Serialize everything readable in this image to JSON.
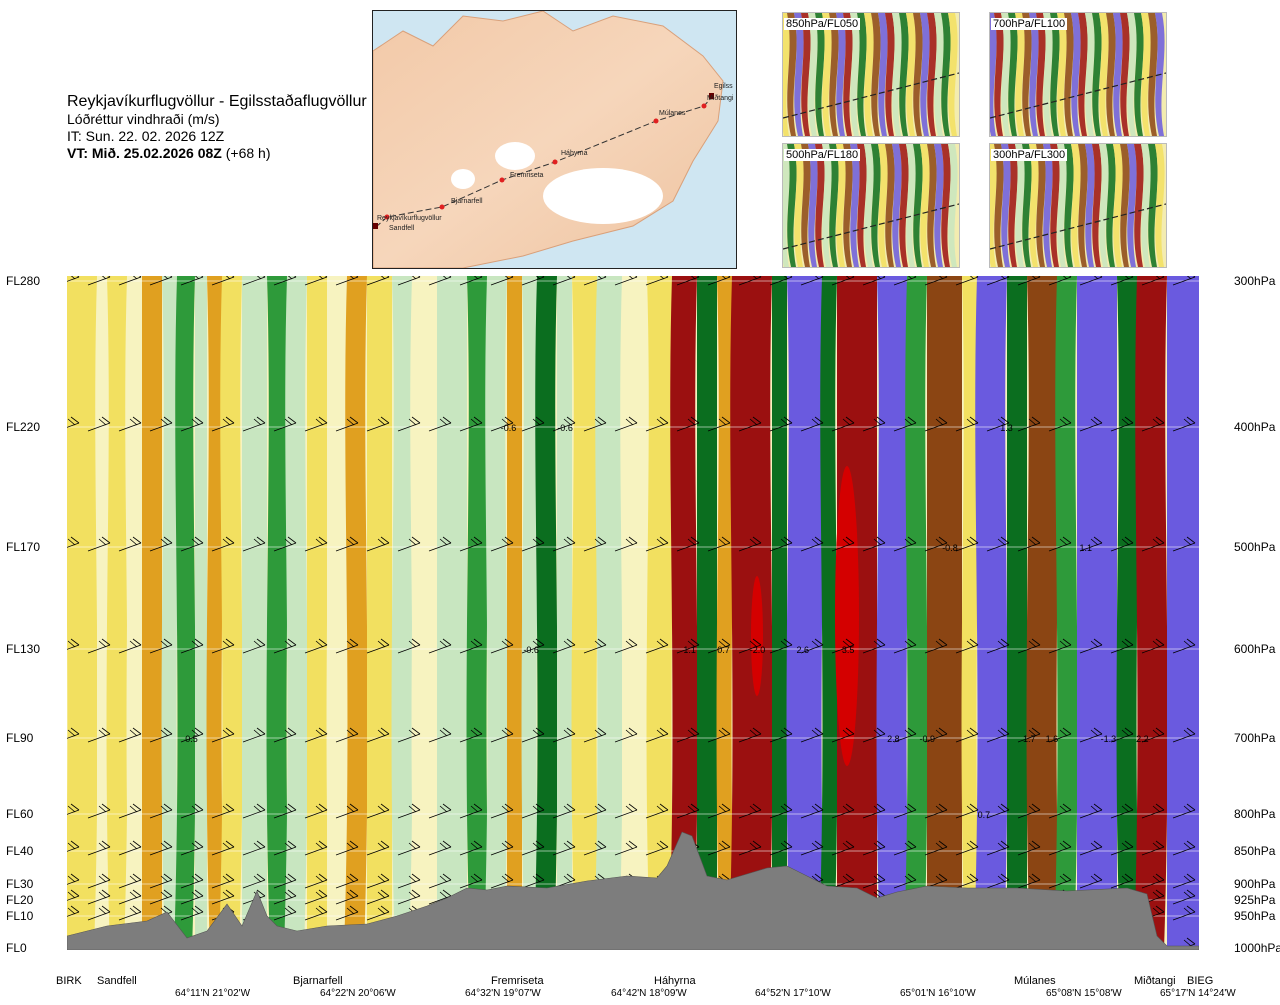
{
  "header": {
    "title": "Reykjavíkurflugvöllur - Egilsstaðaflugvöllur",
    "subtitle": "Lóðréttur vindhraði (m/s)",
    "issue_time": "IT: Sun. 22. 02. 2026 12Z",
    "valid_prefix": "VT: Mið. 25.02.2026 08Z",
    "valid_suffix": "(+68 h)"
  },
  "map": {
    "route_points": [
      "Reykjavíkurflugvöllur",
      "Sandfell",
      "Bjarnarfell",
      "Fremriseta",
      "Háhyrna",
      "Múlanes",
      "Miðtangi",
      "Egilss"
    ]
  },
  "mini_maps": [
    {
      "label": "850hPa/FL050"
    },
    {
      "label": "700hPa/FL100"
    },
    {
      "label": "500hPa/FL180"
    },
    {
      "label": "300hPa/FL300"
    }
  ],
  "chart_data": {
    "type": "heatmap",
    "title": "Lóðréttur vindhraði (m/s)",
    "levels": [
      {
        "fl": "FL280",
        "hpa": "300hPa"
      },
      {
        "fl": "FL220",
        "hpa": "400hPa"
      },
      {
        "fl": "FL170",
        "hpa": "500hPa"
      },
      {
        "fl": "FL130",
        "hpa": "600hPa"
      },
      {
        "fl": "FL90",
        "hpa": "700hPa"
      },
      {
        "fl": "FL60",
        "hpa": "800hPa"
      },
      {
        "fl": "FL40",
        "hpa": "850hPa"
      },
      {
        "fl": "FL30",
        "hpa": "900hPa"
      },
      {
        "fl": "FL20",
        "hpa": "925hPa"
      },
      {
        "fl": "FL10",
        "hpa": "950hPa"
      },
      {
        "fl": "FL0",
        "hpa": "1000hPa"
      }
    ],
    "locations": [
      "BIRK",
      "Sandfell",
      "Bjarnarfell",
      "Fremriseta",
      "Háhyrna",
      "Múlanes",
      "Miðtangi",
      "BIEG"
    ],
    "coordinates": [
      "64°11'N 21°02'W",
      "64°22'N 20°06'W",
      "64°32'N 19°07'W",
      "64°42'N 18°09'W",
      "64°52'N 17°10'W",
      "65°01'N 16°10'W",
      "65°08'N 15°08'W",
      "65°17'N 14°24'W"
    ],
    "value_labels": [
      {
        "text": "-0.6",
        "level": "FL220",
        "pos": 0.39
      },
      {
        "text": "-0.6",
        "level": "FL220",
        "pos": 0.44
      },
      {
        "text": "1.3",
        "level": "FL220",
        "pos": 0.83
      },
      {
        "text": "-0.8",
        "level": "FL170",
        "pos": 0.78
      },
      {
        "text": "1.1",
        "level": "FL170",
        "pos": 0.9
      },
      {
        "text": "-0.6",
        "level": "FL130",
        "pos": 0.41
      },
      {
        "text": "1.1",
        "level": "FL130",
        "pos": 0.55
      },
      {
        "text": "0.7",
        "level": "FL130",
        "pos": 0.58
      },
      {
        "text": "-2.0",
        "level": "FL130",
        "pos": 0.61
      },
      {
        "text": "2.6",
        "level": "FL130",
        "pos": 0.65
      },
      {
        "text": "3.5",
        "level": "FL130",
        "pos": 0.69
      },
      {
        "text": "0.5",
        "level": "FL90",
        "pos": 0.11
      },
      {
        "text": "2.8",
        "level": "FL90",
        "pos": 0.73
      },
      {
        "text": "-0.9",
        "level": "FL90",
        "pos": 0.76
      },
      {
        "text": "1.7",
        "level": "FL90",
        "pos": 0.85
      },
      {
        "text": "1.6",
        "level": "FL90",
        "pos": 0.87
      },
      {
        "text": "-1.3",
        "level": "FL90",
        "pos": 0.92
      },
      {
        "text": "2.2",
        "level": "FL90",
        "pos": 0.95
      },
      {
        "text": "0.7",
        "level": "FL60",
        "pos": 0.81
      }
    ],
    "colors": {
      "strong_down_brown": "#8b4513",
      "down_orange": "#e0a020",
      "weak_down_yellow": "#f2e060",
      "pale": "#f7f3c0",
      "weak_up_green": "#c8e6c0",
      "up_green": "#2e9a3a",
      "strong_up_darkgreen": "#0b6e1f",
      "strong_red": "#9b1010",
      "extreme_red": "#d40000",
      "strong_blue": "#6a5adf",
      "terrain": "#7d7d7d"
    }
  }
}
